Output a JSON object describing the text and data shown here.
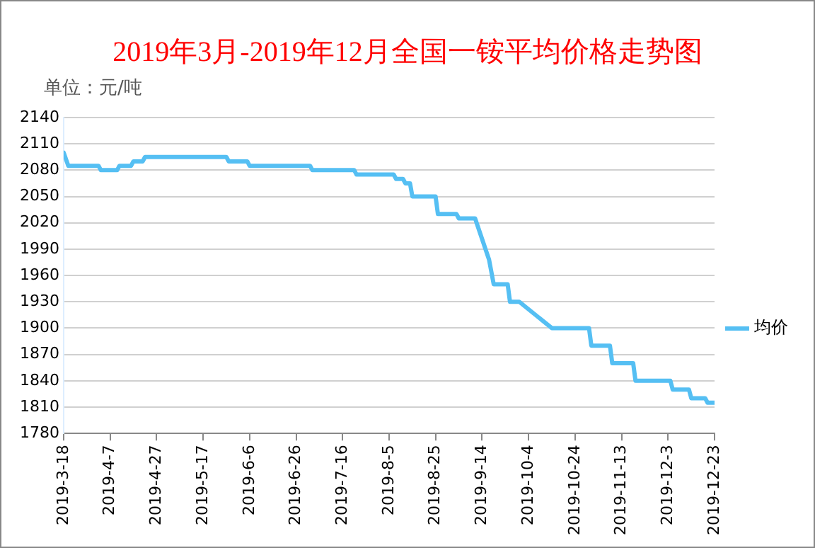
{
  "chart_data": {
    "type": "line",
    "title": "2019年3月-2019年12月全国一铵平均价格走势图",
    "ylabel": "单位：元/吨",
    "x": [
      "2019-03-18",
      "2019-03-20",
      "2019-04-02",
      "2019-04-03",
      "2019-04-10",
      "2019-04-11",
      "2019-04-16",
      "2019-04-17",
      "2019-04-21",
      "2019-04-22",
      "2019-05-27",
      "2019-05-28",
      "2019-06-05",
      "2019-06-06",
      "2019-07-02",
      "2019-07-03",
      "2019-07-21",
      "2019-07-22",
      "2019-08-07",
      "2019-08-08",
      "2019-08-11",
      "2019-08-12",
      "2019-08-14",
      "2019-08-15",
      "2019-08-25",
      "2019-08-26",
      "2019-09-03",
      "2019-09-04",
      "2019-09-11",
      "2019-09-17",
      "2019-09-19",
      "2019-09-25",
      "2019-09-26",
      "2019-09-30",
      "2019-10-14",
      "2019-10-30",
      "2019-10-31",
      "2019-11-08",
      "2019-11-09",
      "2019-11-18",
      "2019-11-19",
      "2019-12-04",
      "2019-12-05",
      "2019-12-12",
      "2019-12-13",
      "2019-12-19",
      "2019-12-20",
      "2019-12-23"
    ],
    "series": [
      {
        "name": "均价",
        "color": "#55bff3",
        "values": [
          2100,
          2085,
          2085,
          2080,
          2080,
          2085,
          2085,
          2090,
          2090,
          2095,
          2095,
          2090,
          2090,
          2085,
          2085,
          2080,
          2080,
          2075,
          2075,
          2070,
          2070,
          2065,
          2065,
          2050,
          2050,
          2030,
          2030,
          2025,
          2025,
          1978,
          1950,
          1950,
          1930,
          1930,
          1900,
          1900,
          1880,
          1880,
          1860,
          1860,
          1840,
          1840,
          1830,
          1830,
          1820,
          1820,
          1815,
          1815
        ]
      }
    ],
    "xlim": [
      "2019-03-18",
      "2019-12-23"
    ],
    "xticks": [
      {
        "value": "2019-03-18",
        "label": "2019-3-18"
      },
      {
        "value": "2019-04-07",
        "label": "2019-4-7"
      },
      {
        "value": "2019-04-27",
        "label": "2019-4-27"
      },
      {
        "value": "2019-05-17",
        "label": "2019-5-17"
      },
      {
        "value": "2019-06-06",
        "label": "2019-6-6"
      },
      {
        "value": "2019-06-26",
        "label": "2019-6-26"
      },
      {
        "value": "2019-07-16",
        "label": "2019-7-16"
      },
      {
        "value": "2019-08-05",
        "label": "2019-8-5"
      },
      {
        "value": "2019-08-25",
        "label": "2019-8-25"
      },
      {
        "value": "2019-09-14",
        "label": "2019-9-14"
      },
      {
        "value": "2019-10-04",
        "label": "2019-10-4"
      },
      {
        "value": "2019-10-24",
        "label": "2019-10-24"
      },
      {
        "value": "2019-11-13",
        "label": "2019-11-13"
      },
      {
        "value": "2019-12-03",
        "label": "2019-12-3"
      },
      {
        "value": "2019-12-23",
        "label": "2019-12-23"
      }
    ],
    "ylim": [
      1780,
      2140
    ],
    "yticks": [
      1780,
      1810,
      1840,
      1870,
      1900,
      1930,
      1960,
      1990,
      2020,
      2050,
      2080,
      2110,
      2140
    ],
    "grid": "y",
    "legend": "right",
    "marker": "none",
    "line_style": "solid"
  }
}
